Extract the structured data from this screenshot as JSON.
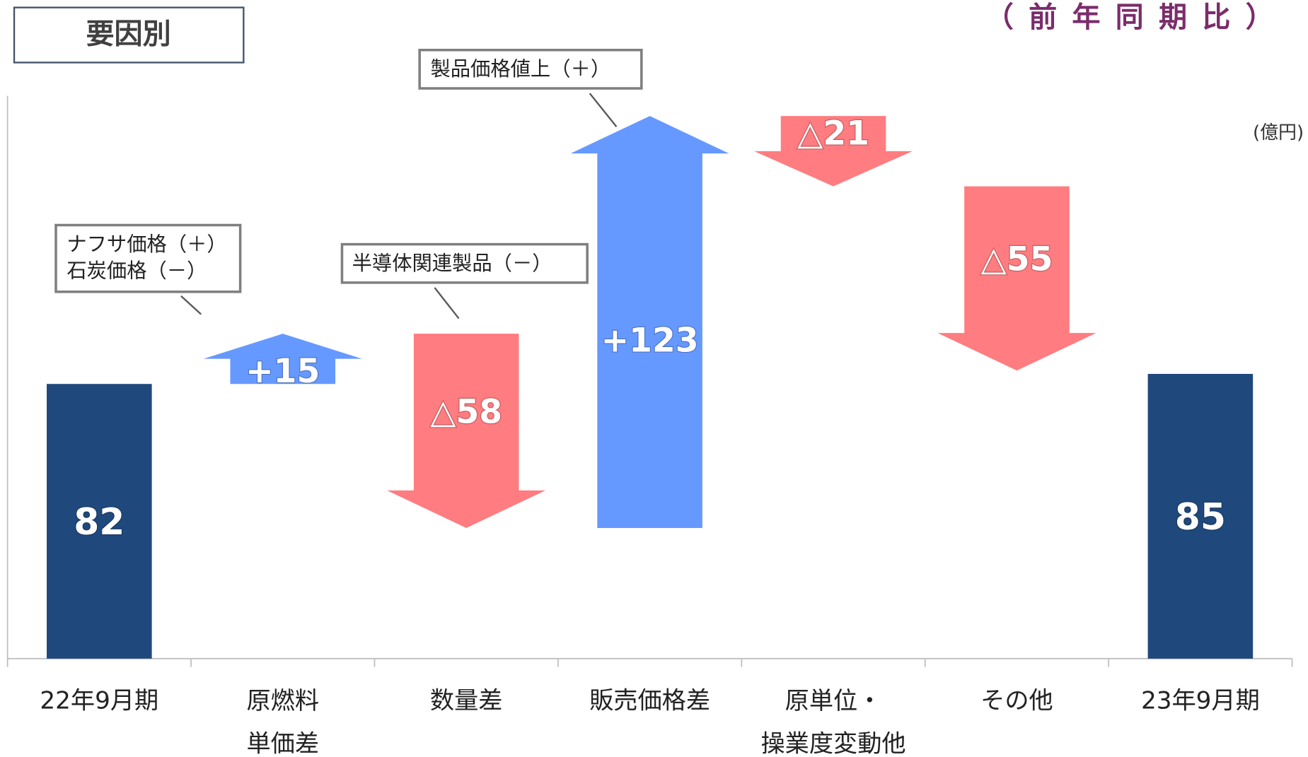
{
  "chart_data": {
    "type": "waterfall",
    "title": "要因別",
    "subtitle": "（前年同期比）",
    "unit": "(億円)",
    "categories": [
      "22年9月期",
      "原燃料\n単価差",
      "数量差",
      "販売価格差",
      "原単位・\n操業度変動他",
      "その他",
      "23年9月期"
    ],
    "values": [
      82,
      15,
      -58,
      123,
      -21,
      -55,
      85
    ],
    "value_labels": [
      "82",
      "+15",
      "△58",
      "+123",
      "△21",
      "△55",
      "85"
    ],
    "kinds": [
      "total",
      "delta",
      "delta",
      "delta",
      "delta",
      "delta",
      "total"
    ],
    "colors": {
      "total": "#1f497d",
      "increase": "#6699ff",
      "decrease": "#ff7c80"
    },
    "ylim": [
      0,
      168
    ],
    "annotations": [
      "ナフサ価格（＋）\n石炭価格（－）",
      "半導体関連製品（－）",
      "製品価格値上（＋）"
    ]
  }
}
